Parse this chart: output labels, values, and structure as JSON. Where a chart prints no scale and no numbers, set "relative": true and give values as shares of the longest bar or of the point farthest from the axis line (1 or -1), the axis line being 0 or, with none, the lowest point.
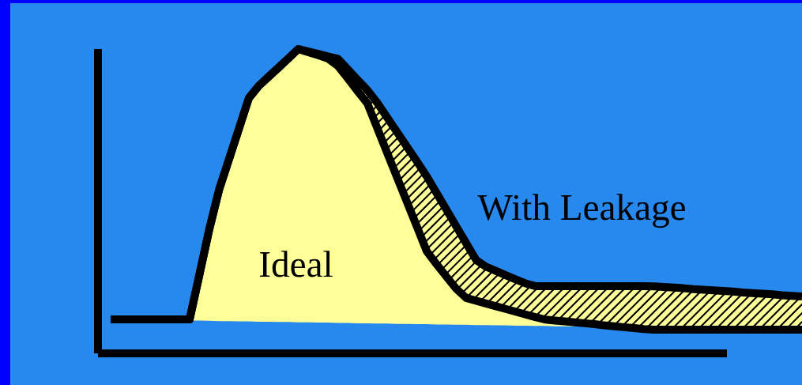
{
  "chart_data": {
    "type": "line",
    "relative": true,
    "categories": [
      null,
      null,
      null,
      null,
      null,
      null,
      null,
      null,
      null,
      null,
      null,
      null,
      null,
      null,
      null,
      null,
      null,
      null,
      null,
      null,
      null,
      null,
      null,
      null,
      null,
      null,
      null,
      null,
      null,
      null,
      null,
      null,
      null,
      null,
      null,
      null,
      null,
      null,
      null,
      null,
      null,
      null,
      null,
      null,
      null,
      null,
      null,
      null,
      null,
      null,
      null,
      null,
      null,
      null,
      null,
      null,
      null,
      null,
      null,
      null,
      null,
      null,
      null,
      null,
      null,
      null,
      null,
      null,
      null,
      null,
      null
    ],
    "series": [
      {
        "name": "Ideal",
        "color": "#000000",
        "values": [
          0.112,
          0.112,
          0.112,
          0.112,
          0.112,
          0.112,
          0.112,
          0.112,
          0.112,
          0.26,
          0.409,
          0.54,
          0.639,
          0.739,
          0.839,
          0.879,
          0.909,
          0.939,
          0.969,
          1.0,
          0.99,
          0.98,
          0.969,
          0.945,
          0.904,
          0.862,
          0.821,
          0.74,
          0.659,
          0.578,
          0.498,
          0.417,
          0.336,
          0.293,
          0.252,
          0.212,
          0.182,
          0.173,
          0.164,
          0.155,
          0.146,
          0.137,
          0.128,
          0.119,
          0.111,
          0.108,
          0.105,
          0.102,
          0.099,
          0.096,
          0.092,
          0.089,
          0.086,
          0.083,
          0.08,
          0.078,
          0.078,
          0.078,
          0.078,
          0.078,
          0.078,
          0.078,
          0.078,
          0.078,
          0.078,
          0.078,
          0.078,
          0.078,
          0.078,
          0.078,
          0.078
        ],
        "lower": [
          null,
          null,
          null,
          null,
          null,
          null,
          null,
          null,
          0.108,
          0.108,
          0.107,
          0.106,
          0.106,
          0.105,
          0.105,
          0.104,
          0.104,
          0.103,
          0.103,
          0.102,
          0.102,
          0.101,
          0.101,
          0.1,
          0.1,
          0.099,
          0.099,
          0.098,
          0.098,
          0.097,
          0.097,
          0.096,
          0.096,
          0.095,
          0.095,
          0.094,
          0.094,
          0.093,
          0.093,
          0.092,
          0.092,
          0.091,
          0.091,
          0.09,
          0.09,
          0.089,
          0.089,
          0.088,
          null,
          null,
          null,
          null,
          null,
          null,
          null,
          null,
          null,
          null,
          null,
          null,
          null,
          null,
          null,
          null,
          null,
          null,
          null,
          null,
          null,
          null,
          null
        ],
        "upper": [
          null,
          null,
          null,
          null,
          null,
          null,
          null,
          null,
          0.112,
          0.26,
          0.409,
          0.54,
          0.639,
          0.739,
          0.839,
          0.879,
          0.909,
          0.939,
          0.969,
          1.0,
          0.99,
          0.98,
          0.969,
          0.945,
          0.904,
          0.862,
          0.821,
          0.74,
          0.659,
          0.578,
          0.498,
          0.417,
          0.336,
          0.293,
          0.252,
          0.212,
          0.182,
          0.173,
          0.164,
          0.155,
          0.146,
          0.137,
          0.128,
          0.119,
          0.111,
          0.108,
          0.105,
          0.102,
          null,
          null,
          null,
          null,
          null,
          null,
          null,
          null,
          null,
          null,
          null,
          null,
          null,
          null,
          null,
          null,
          null,
          null,
          null,
          null,
          null,
          null,
          null
        ]
      },
      {
        "name": "With Leakage",
        "color": "#000000",
        "values": [
          0.112,
          0.112,
          0.112,
          0.112,
          0.112,
          0.112,
          0.112,
          0.112,
          0.112,
          0.26,
          0.409,
          0.54,
          0.639,
          0.739,
          0.839,
          0.879,
          0.909,
          0.939,
          0.969,
          1.0,
          0.992,
          0.984,
          0.976,
          0.968,
          0.934,
          0.899,
          0.865,
          0.823,
          0.775,
          0.727,
          0.679,
          0.631,
          0.582,
          0.527,
          0.472,
          0.417,
          0.362,
          0.307,
          0.285,
          0.271,
          0.257,
          0.243,
          0.23,
          0.221,
          0.221,
          0.221,
          0.221,
          0.221,
          0.221,
          0.221,
          0.221,
          0.221,
          0.221,
          0.221,
          0.221,
          0.22,
          0.218,
          0.216,
          0.214,
          0.211,
          0.209,
          0.207,
          0.205,
          0.203,
          0.2,
          0.198,
          0.196,
          0.194,
          0.191,
          0.189,
          0.187
        ],
        "lower": [
          null,
          null,
          null,
          null,
          null,
          null,
          null,
          null,
          null,
          null,
          null,
          null,
          null,
          null,
          null,
          null,
          null,
          null,
          null,
          null,
          0.99,
          0.98,
          0.969,
          0.945,
          0.904,
          0.862,
          0.821,
          0.74,
          0.659,
          0.578,
          0.498,
          0.417,
          0.336,
          0.293,
          0.252,
          0.212,
          0.182,
          0.173,
          0.164,
          0.155,
          0.146,
          0.137,
          0.128,
          0.119,
          0.111,
          0.108,
          0.105,
          0.102,
          0.099,
          0.096,
          0.092,
          0.089,
          0.086,
          0.083,
          0.08,
          0.078,
          0.078,
          0.078,
          0.078,
          0.078,
          0.078,
          0.078,
          0.078,
          0.078,
          0.078,
          0.078,
          0.078,
          0.078,
          0.078,
          0.078,
          0.078
        ],
        "upper": [
          null,
          null,
          null,
          null,
          null,
          null,
          null,
          null,
          null,
          null,
          null,
          null,
          null,
          null,
          null,
          null,
          null,
          null,
          null,
          null,
          0.992,
          0.984,
          0.976,
          0.968,
          0.934,
          0.899,
          0.865,
          0.823,
          0.775,
          0.727,
          0.679,
          0.631,
          0.582,
          0.527,
          0.472,
          0.417,
          0.362,
          0.307,
          0.285,
          0.271,
          0.257,
          0.243,
          0.23,
          0.221,
          0.221,
          0.221,
          0.221,
          0.221,
          0.221,
          0.221,
          0.221,
          0.221,
          0.221,
          0.221,
          0.221,
          0.22,
          0.218,
          0.216,
          0.214,
          0.211,
          0.209,
          0.207,
          0.205,
          0.203,
          0.2,
          0.198,
          0.196,
          0.194,
          0.191,
          0.189,
          0.187
        ]
      }
    ]
  }
}
